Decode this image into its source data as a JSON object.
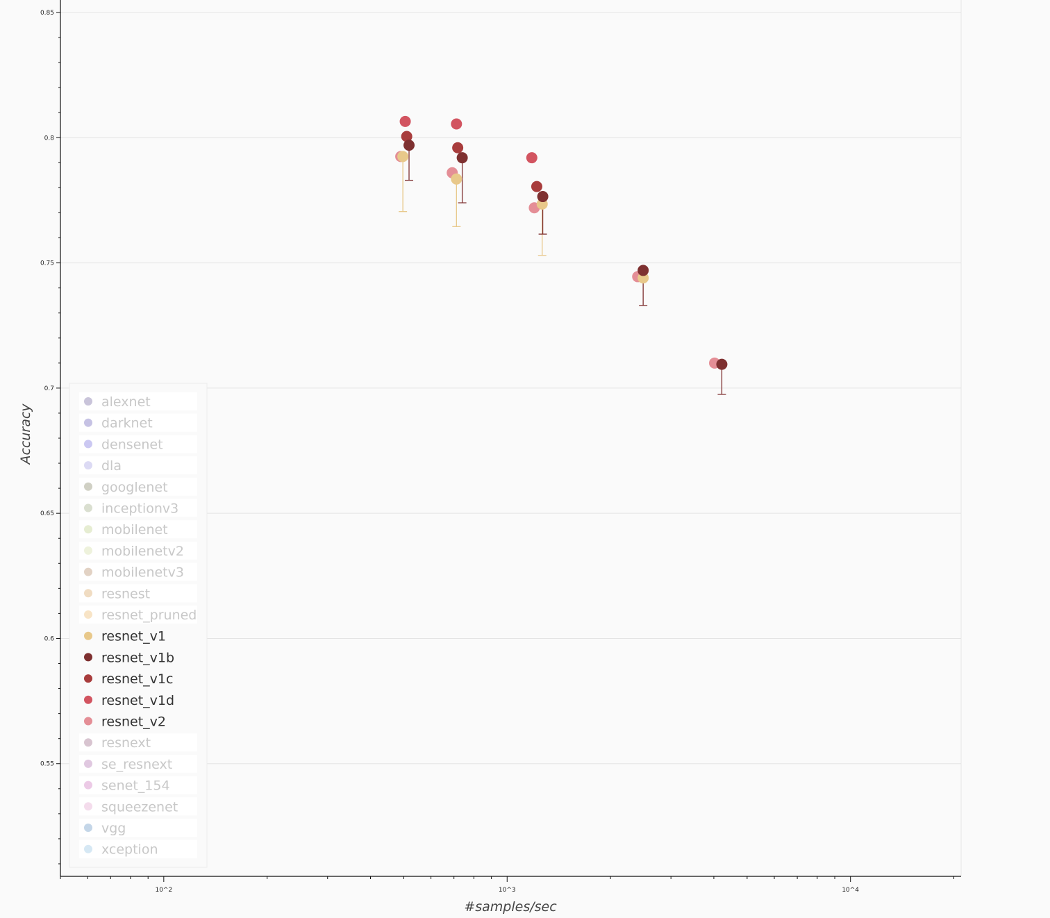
{
  "chart_data": {
    "type": "scatter",
    "title": "",
    "xlabel": "#samples/sec",
    "ylabel": "Accuracy",
    "x_scale": "log",
    "xlim": [
      50,
      21000
    ],
    "ylim": [
      0.505,
      0.855
    ],
    "x_ticks": [
      {
        "value": 100,
        "label": "10^2"
      },
      {
        "value": 1000,
        "label": "10^3"
      },
      {
        "value": 10000,
        "label": "10^4"
      }
    ],
    "y_ticks": [
      {
        "value": 0.55,
        "label": "0.55"
      },
      {
        "value": 0.6,
        "label": "0.6"
      },
      {
        "value": 0.65,
        "label": "0.65"
      },
      {
        "value": 0.7,
        "label": "0.7"
      },
      {
        "value": 0.75,
        "label": "0.75"
      },
      {
        "value": 0.8,
        "label": "0.8"
      },
      {
        "value": 0.85,
        "label": "0.85"
      }
    ],
    "grid": true,
    "legend_position": "bottom-left",
    "legend": [
      {
        "name": "alexnet",
        "color": "#c9c4da",
        "active": false
      },
      {
        "name": "darknet",
        "color": "#c6c2e4",
        "active": false
      },
      {
        "name": "densenet",
        "color": "#cbc8f2",
        "active": false
      },
      {
        "name": "dla",
        "color": "#dcdaf4",
        "active": false
      },
      {
        "name": "googlenet",
        "color": "#d0d0c4",
        "active": false
      },
      {
        "name": "inceptionv3",
        "color": "#dadfd0",
        "active": false
      },
      {
        "name": "mobilenet",
        "color": "#e6edd2",
        "active": false
      },
      {
        "name": "mobilenetv2",
        "color": "#eef2dc",
        "active": false
      },
      {
        "name": "mobilenetv3",
        "color": "#e2d2c4",
        "active": false
      },
      {
        "name": "resnest",
        "color": "#f0dcc2",
        "active": false
      },
      {
        "name": "resnet_pruned",
        "color": "#f8e4c6",
        "active": false
      },
      {
        "name": "resnet_v1",
        "color": "#e8c88a",
        "active": true
      },
      {
        "name": "resnet_v1b",
        "color": "#7e3030",
        "active": true
      },
      {
        "name": "resnet_v1c",
        "color": "#a83c3c",
        "active": true
      },
      {
        "name": "resnet_v1d",
        "color": "#d25460",
        "active": true
      },
      {
        "name": "resnet_v2",
        "color": "#e48e96",
        "active": true
      },
      {
        "name": "resnext",
        "color": "#d8c4d0",
        "active": false
      },
      {
        "name": "se_resnext",
        "color": "#e0c8e0",
        "active": false
      },
      {
        "name": "senet_154",
        "color": "#eccae6",
        "active": false
      },
      {
        "name": "squeezenet",
        "color": "#f4dcec",
        "active": false
      },
      {
        "name": "vgg",
        "color": "#c4d6e8",
        "active": false
      },
      {
        "name": "xception",
        "color": "#d6e8f4",
        "active": false
      }
    ],
    "series": [
      {
        "name": "resnet_v1",
        "color": "#e8c88a",
        "points": [
          {
            "x": 497,
            "y": 0.7925,
            "err_low": 0.7705
          },
          {
            "x": 712,
            "y": 0.7835,
            "err_low": 0.7645
          },
          {
            "x": 1265,
            "y": 0.7735,
            "err_low": 0.753
          },
          {
            "x": 2490,
            "y": 0.744
          }
        ]
      },
      {
        "name": "resnet_v1b",
        "color": "#7e3030",
        "points": [
          {
            "x": 518,
            "y": 0.797,
            "err_low": 0.783
          },
          {
            "x": 740,
            "y": 0.792,
            "err_low": 0.774
          },
          {
            "x": 1270,
            "y": 0.7765,
            "err_low": 0.7615
          },
          {
            "x": 2490,
            "y": 0.747,
            "err_low": 0.733
          },
          {
            "x": 4220,
            "y": 0.7095,
            "err_low": 0.6975
          }
        ]
      },
      {
        "name": "resnet_v1c",
        "color": "#a83c3c",
        "points": [
          {
            "x": 510,
            "y": 0.8005
          },
          {
            "x": 718,
            "y": 0.796
          },
          {
            "x": 1220,
            "y": 0.7805
          }
        ]
      },
      {
        "name": "resnet_v1d",
        "color": "#d25460",
        "points": [
          {
            "x": 505,
            "y": 0.8065
          },
          {
            "x": 712,
            "y": 0.8055
          },
          {
            "x": 1180,
            "y": 0.792
          }
        ]
      },
      {
        "name": "resnet_v2",
        "color": "#e48e96",
        "points": [
          {
            "x": 490,
            "y": 0.7925
          },
          {
            "x": 692,
            "y": 0.786
          },
          {
            "x": 1200,
            "y": 0.772
          },
          {
            "x": 2400,
            "y": 0.7445
          },
          {
            "x": 4020,
            "y": 0.71
          }
        ]
      }
    ]
  }
}
